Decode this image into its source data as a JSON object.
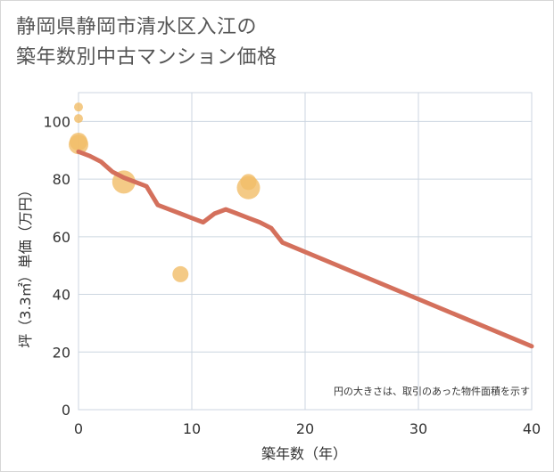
{
  "title_line1": "静岡県静岡市清水区入江の",
  "title_line2": "築年数別中古マンション価格",
  "chart_data": {
    "type": "scatter",
    "title": "静岡県静岡市清水区入江の築年数別中古マンション価格",
    "xlabel": "築年数（年）",
    "ylabel": "坪（3.3㎡）単価（万円）",
    "xlim": [
      0,
      40
    ],
    "ylim": [
      0,
      110
    ],
    "xticks": [
      0,
      10,
      20,
      30,
      40
    ],
    "yticks": [
      0,
      20,
      40,
      60,
      80,
      100
    ],
    "grid": true,
    "note": "円の大きさは、取引のあった物件面積を示す",
    "colors": {
      "bubble": "#f1bd68",
      "trend": "#d4705c",
      "grid": "#ccd6e0"
    },
    "bubbles": [
      {
        "x": 0,
        "y": 105,
        "size": 5
      },
      {
        "x": 0,
        "y": 101,
        "size": 5
      },
      {
        "x": 0,
        "y": 93,
        "size": 10
      },
      {
        "x": 0,
        "y": 92,
        "size": 11
      },
      {
        "x": 4,
        "y": 79,
        "size": 13
      },
      {
        "x": 9,
        "y": 47,
        "size": 9
      },
      {
        "x": 15,
        "y": 79,
        "size": 9
      },
      {
        "x": 15,
        "y": 77,
        "size": 13
      }
    ],
    "trend": {
      "name": "trend",
      "x": [
        0,
        1,
        2,
        3,
        4,
        5,
        6,
        7,
        8,
        9,
        10,
        11,
        12,
        13,
        14,
        15,
        16,
        17,
        18,
        40
      ],
      "y": [
        89.5,
        88,
        86,
        82.5,
        80.5,
        79,
        77.5,
        71,
        69.5,
        68,
        66.5,
        65,
        68,
        69.5,
        68,
        66.5,
        65,
        63,
        58,
        22
      ]
    }
  }
}
